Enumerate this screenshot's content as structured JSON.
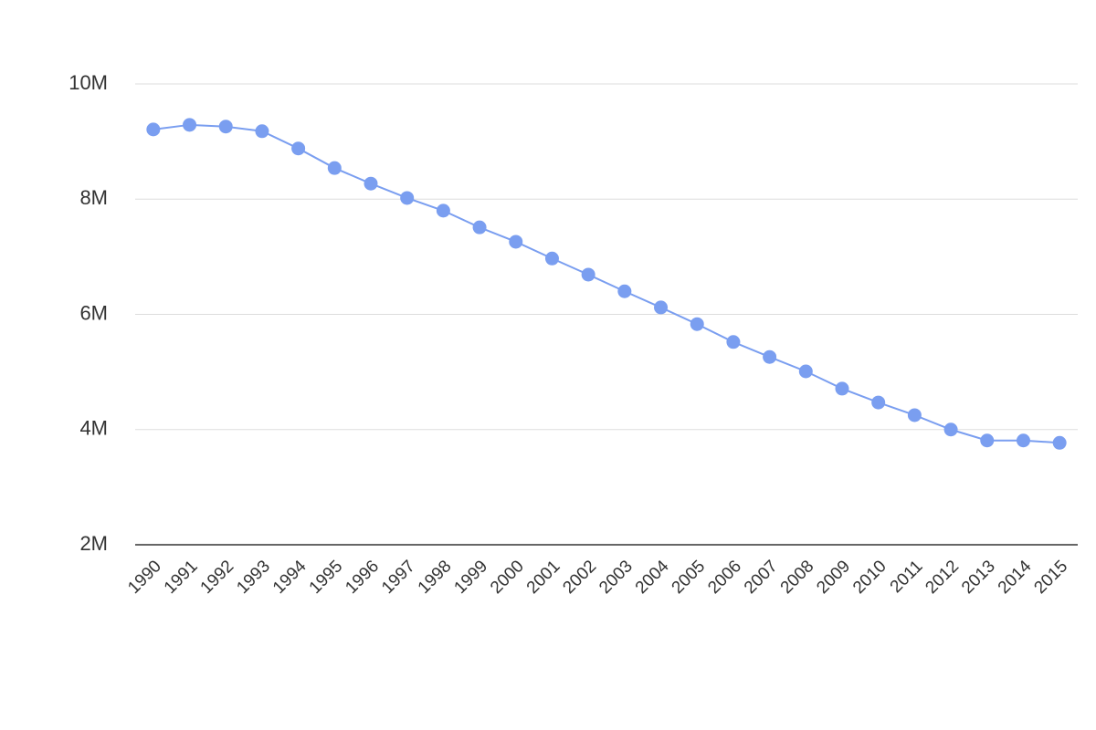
{
  "chart_data": {
    "type": "line",
    "categories": [
      "1990",
      "1991",
      "1992",
      "1993",
      "1994",
      "1995",
      "1996",
      "1997",
      "1998",
      "1999",
      "2000",
      "2001",
      "2002",
      "2003",
      "2004",
      "2005",
      "2006",
      "2007",
      "2008",
      "2009",
      "2010",
      "2011",
      "2012",
      "2013",
      "2014",
      "2015"
    ],
    "series": [
      {
        "color": "#7a9ef0",
        "values": [
          9210000,
          9290000,
          9260000,
          9180000,
          8880000,
          8540000,
          8270000,
          8020000,
          7800000,
          7510000,
          7260000,
          6970000,
          6690000,
          6400000,
          6120000,
          5830000,
          5520000,
          5260000,
          5010000,
          4710000,
          4470000,
          4250000,
          4000000,
          3810000,
          3810000,
          3770000
        ]
      }
    ],
    "ylim": [
      2000000,
      10000000
    ],
    "yticks": [
      {
        "value": 2000000,
        "label": "2M"
      },
      {
        "value": 4000000,
        "label": "4M"
      },
      {
        "value": 6000000,
        "label": "6M"
      },
      {
        "value": 8000000,
        "label": "8M"
      },
      {
        "value": 10000000,
        "label": "10M"
      }
    ],
    "grid": true
  }
}
